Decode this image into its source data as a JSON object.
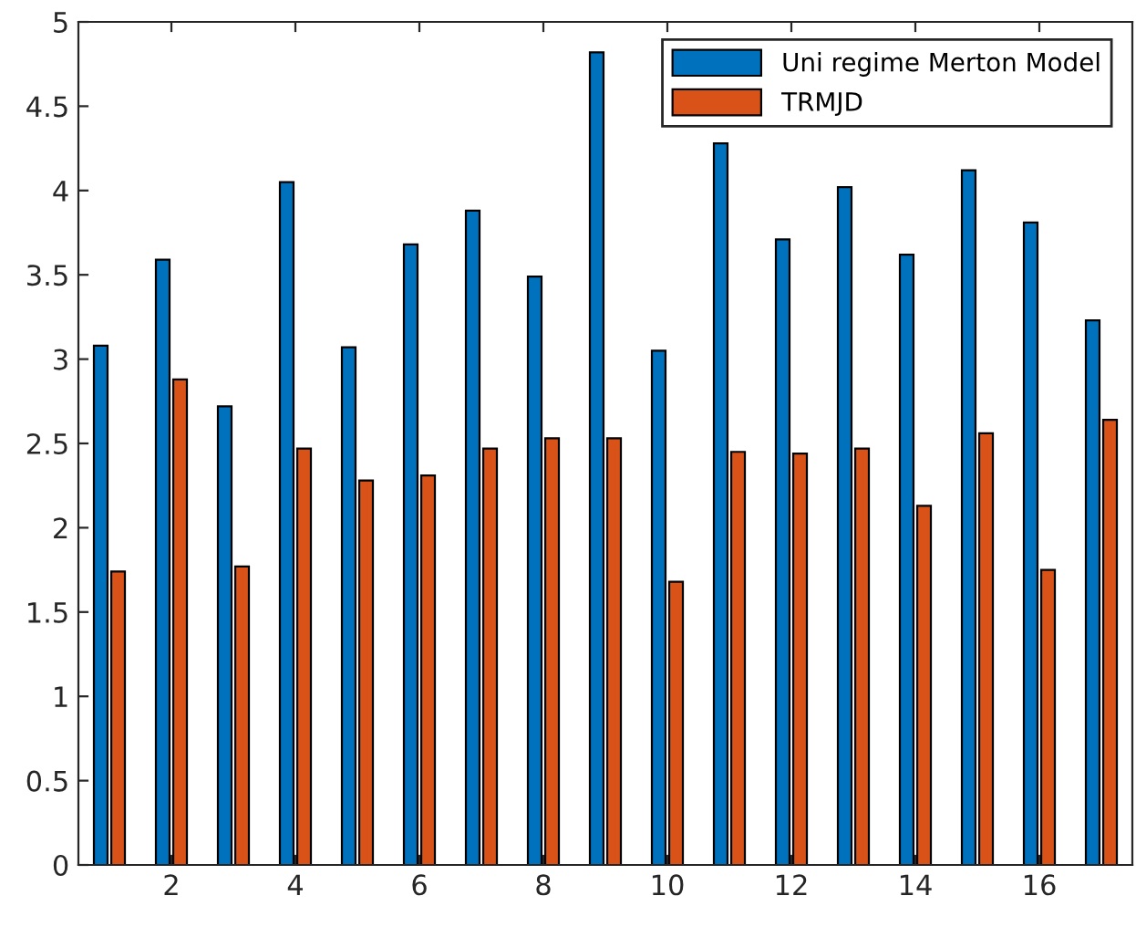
{
  "chart_data": {
    "type": "bar",
    "x": [
      1,
      2,
      3,
      4,
      5,
      6,
      7,
      8,
      9,
      10,
      11,
      12,
      13,
      14,
      15,
      16,
      17
    ],
    "series": [
      {
        "name": "Uni regime Merton Model",
        "color": "#0072bd",
        "values": [
          3.08,
          3.59,
          2.72,
          4.05,
          3.07,
          3.68,
          3.88,
          3.49,
          4.82,
          3.05,
          4.28,
          3.71,
          4.02,
          3.62,
          4.12,
          3.81,
          3.23
        ]
      },
      {
        "name": "TRMJD",
        "color": "#d95319",
        "values": [
          1.74,
          2.88,
          1.77,
          2.47,
          2.28,
          2.31,
          2.47,
          2.53,
          2.53,
          1.68,
          2.45,
          2.44,
          2.47,
          2.13,
          2.56,
          1.75,
          2.64
        ]
      }
    ],
    "xlim": [
      0.5,
      17.5
    ],
    "xticks": [
      2,
      4,
      6,
      8,
      10,
      12,
      14,
      16
    ],
    "ylim": [
      0,
      5
    ],
    "yticks": [
      0,
      0.5,
      1,
      1.5,
      2,
      2.5,
      3,
      3.5,
      4,
      4.5,
      5
    ],
    "grid": false,
    "legend": "top right"
  }
}
